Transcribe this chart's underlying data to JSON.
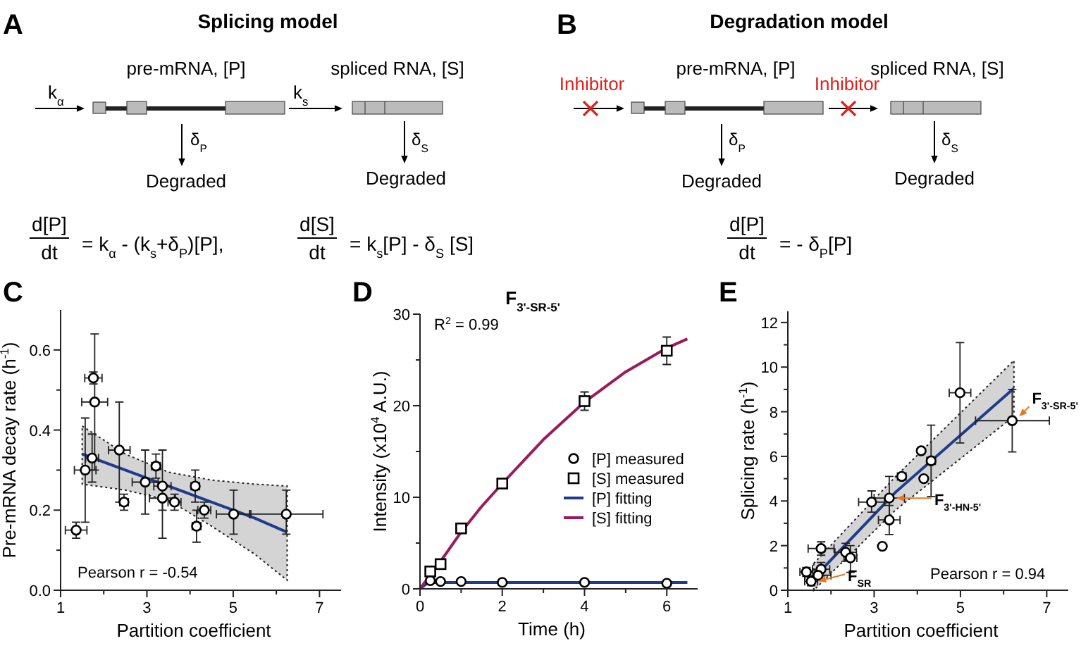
{
  "chart_data": [
    {
      "type": "other",
      "title": "Splicing model",
      "annotations": [
        "A",
        "pre-mRNA, [P]",
        "spliced RNA, [S]",
        "k$_{α}$",
        "k$_{s}$",
        "δ$_{P}$",
        "δ$_{S}$",
        "Degraded",
        "Degraded",
        "d[P]",
        "dt",
        "= k$_{α}$ - (k$_{s}$+δ$_{P}$)[P],",
        "d[S]",
        "dt",
        "= k$_{s}$[P] - δ$_{S}$ [S]"
      ]
    },
    {
      "type": "other",
      "title": "Degradation model",
      "annotations": [
        "B",
        "Inhibitor",
        "Inhibitor",
        "pre-mRNA, [P]",
        "spliced RNA, [S]",
        "δ$_{P}$",
        "δ$_{S}$",
        "Degraded",
        "Degraded",
        "d[P]",
        "dt",
        "= - δ$_{P}$[P]"
      ]
    },
    {
      "type": "scatter",
      "xlabel": "Partition coefficient",
      "ylabel": "Pre-mRNA decay rate (h$^{-1}$)",
      "annotations": [
        "C",
        "Pearson r = -0.54"
      ],
      "xlim": [
        1,
        7.5
      ],
      "ylim": [
        0,
        0.7
      ],
      "xticks": [
        1,
        {
          "value": 2,
          "label": null
        },
        3,
        {
          "value": 4,
          "label": null
        },
        5,
        {
          "value": 6,
          "label": null
        },
        7
      ],
      "yticks": [
        {
          "value": 0,
          "label": "0.0"
        },
        {
          "value": 0.1,
          "label": null
        },
        {
          "value": 0.2,
          "label": "0.2"
        },
        {
          "value": 0.3,
          "label": null
        },
        {
          "value": 0.4,
          "label": "0.4"
        },
        {
          "value": 0.5,
          "label": null
        },
        {
          "value": 0.6,
          "label": "0.6"
        }
      ],
      "series": [
        {
          "type": "line",
          "color": "#1f3c8c",
          "x": [
            1.5,
            2.5,
            3.5,
            4.5,
            5.5,
            6.25
          ],
          "values": [
            0.34,
            0.3,
            0.26,
            0.22,
            0.18,
            0.145
          ],
          "lower": [
            0.265,
            0.25,
            0.225,
            0.16,
            0.09,
            0.025
          ],
          "upper": [
            0.41,
            0.34,
            0.295,
            0.275,
            0.265,
            0.26
          ]
        },
        {
          "type": "scatter",
          "marker": "circle",
          "color": "#000000",
          "x": [
            1.36,
            1.76,
            1.79,
            1.73,
            1.57,
            2.36,
            2.47,
            2.96,
            3.21,
            3.36,
            3.36,
            3.64,
            4.12,
            4.15,
            4.33,
            5.01,
            6.23
          ],
          "values": [
            0.15,
            0.53,
            0.47,
            0.33,
            0.3,
            0.35,
            0.22,
            0.27,
            0.31,
            0.26,
            0.23,
            0.22,
            0.26,
            0.16,
            0.2,
            0.19,
            0.19
          ],
          "errors": [
            0.02,
            0.015,
            [
              0.3,
              0.64
            ],
            [
              0.27,
              0.39
            ],
            [
              0.17,
              0.43
            ],
            [
              0.22,
              0.47
            ],
            0.02,
            [
              0.19,
              0.35
            ],
            0.03,
            [
              0.2,
              0.35
            ],
            [
              0.13,
              0.26
            ],
            0.02,
            [
              0.22,
              0.3
            ],
            0.04,
            0.02,
            [
              0.14,
              0.25
            ],
            [
              0.14,
              0.25
            ]
          ],
          "xerrors": [
            0.25,
            0.2,
            0.3,
            0.15,
            0.25,
            0.25,
            0.1,
            0.3,
            0.1,
            0.2,
            0.3,
            0.15,
            0.1,
            0.1,
            0.15,
            0.4,
            0.85
          ]
        }
      ]
    },
    {
      "type": "scatter",
      "title": "F$_{3'-SR-5'}$",
      "xlabel": "Time (h)",
      "ylabel": "Intensity (x10$^{4}$ A.U.)",
      "annotations": [
        "D",
        "R$^{2}$ = 0.99"
      ],
      "xlim": [
        0,
        6.75
      ],
      "ylim": [
        0,
        30
      ],
      "xticks": [
        0,
        {
          "value": 1,
          "label": null
        },
        2,
        {
          "value": 3,
          "label": null
        },
        4,
        {
          "value": 5,
          "label": null
        },
        6
      ],
      "yticks": [
        0,
        {
          "value": 5,
          "label": null
        },
        10,
        {
          "value": 15,
          "label": null
        },
        20,
        {
          "value": 25,
          "label": null
        },
        30
      ],
      "legend": "right",
      "series": [
        {
          "type": "line",
          "name": "[P] fitting",
          "color": "#1f3c8c",
          "x": [
            0,
            0.2,
            6.5
          ],
          "values": [
            0,
            0.7,
            0.7
          ]
        },
        {
          "type": "line",
          "name": "[S] fitting",
          "color": "#9b1b5a",
          "x": [
            0,
            0.5,
            1,
            1.5,
            2,
            3,
            4,
            5,
            6,
            6.5
          ],
          "values": [
            0,
            3,
            6.2,
            9,
            11.5,
            16.3,
            20.4,
            23.7,
            26.3,
            27.3
          ]
        },
        {
          "type": "scatter",
          "name": "[P] measured",
          "marker": "circle",
          "color": "#000000",
          "x": [
            0.25,
            0.5,
            1,
            2,
            4,
            6
          ],
          "values": [
            0.9,
            0.8,
            0.8,
            0.7,
            0.7,
            0.6
          ]
        },
        {
          "type": "scatter",
          "name": "[S] measured",
          "marker": "square",
          "color": "#000000",
          "x": [
            0.25,
            0.5,
            1,
            2,
            4,
            6
          ],
          "values": [
            1.9,
            2.7,
            6.6,
            11.5,
            20.5,
            26
          ],
          "errors": [
            null,
            null,
            null,
            0.2,
            1,
            1.5
          ]
        }
      ]
    },
    {
      "type": "scatter",
      "xlabel": "Partition coefficient",
      "ylabel": "Splicing rate (h$^{-1}$)",
      "annotations": [
        "E",
        "Pearson r = 0.94",
        {
          "text": "F$_{3'-SR-5'}$",
          "x": 6.2,
          "y": 7.6
        },
        {
          "text": "F$_{3'-HN-5'}$",
          "x": 3.35,
          "y": 4.13
        },
        {
          "text": "F$_{SR}$",
          "x": 1.54,
          "y": 0.4
        }
      ],
      "xlim": [
        1,
        7.5
      ],
      "ylim": [
        0,
        12.5
      ],
      "xticks": [
        1,
        {
          "value": 2,
          "label": null
        },
        3,
        {
          "value": 4,
          "label": null
        },
        5,
        {
          "value": 6,
          "label": null
        },
        7
      ],
      "yticks": [
        0,
        {
          "value": 1,
          "label": null
        },
        2,
        {
          "value": 3,
          "label": null
        },
        4,
        {
          "value": 5,
          "label": null
        },
        6,
        {
          "value": 7,
          "label": null
        },
        8,
        {
          "value": 9,
          "label": null
        },
        10,
        {
          "value": 11,
          "label": null
        },
        12
      ],
      "series": [
        {
          "type": "line",
          "color": "#1f3c8c",
          "x": [
            1.6,
            3.5,
            6.24
          ],
          "values": [
            0.55,
            4.4,
            9.05
          ],
          "lower": [
            0,
            3.6,
            7.8
          ],
          "upper": [
            1.2,
            5.1,
            10.3
          ]
        },
        {
          "type": "scatter",
          "marker": "circle",
          "color": "#000000",
          "x": [
            4.99,
            6.2,
            4.09,
            4.32,
            3.64,
            4.15,
            3.35,
            2.94,
            3.35,
            3.19,
            1.77,
            2.34,
            2.45,
            1.77,
            1.43,
            1.7,
            1.54
          ],
          "values": [
            8.85,
            7.6,
            6.25,
            5.8,
            5.1,
            5.0,
            4.13,
            3.95,
            3.15,
            1.97,
            1.87,
            1.7,
            1.45,
            0.94,
            0.82,
            0.67,
            0.4
          ],
          "errors": [
            [
              6.6,
              11.1
            ],
            [
              6.2,
              9.0
            ],
            0.1,
            [
              4.2,
              7.4
            ],
            0.1,
            0.1,
            [
              3.2,
              5.1
            ],
            [
              3.5,
              4.45
            ],
            [
              2.5,
              3.8
            ],
            0.1,
            0.3,
            0.4,
            [
              0.8,
              2.0
            ],
            0.3,
            0.2,
            0.2,
            0.2
          ],
          "xerrors": [
            0.25,
            [
              5.35,
              7.06
            ],
            0.05,
            0.1,
            0.1,
            0.05,
            0.35,
            0.3,
            0.25,
            0.05,
            0.3,
            0.25,
            0.15,
            0.2,
            0.15,
            0.3,
            0.15
          ]
        }
      ]
    }
  ]
}
